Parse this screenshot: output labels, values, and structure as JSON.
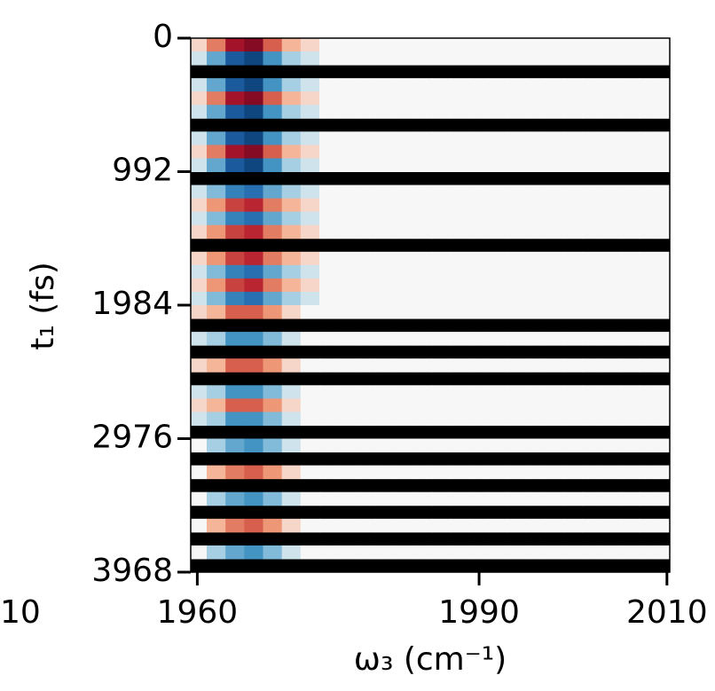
{
  "chart_data": {
    "type": "heatmap",
    "xlabel": "ω₃ (cm⁻¹)",
    "ylabel": "t₁ (fs)",
    "clipped_label": "10",
    "colormap": "RdBu_r",
    "clim": [
      -1,
      1
    ],
    "missing_color": "#000000",
    "xlim": [
      1959.3,
      2010.3
    ],
    "xticks": [
      1960,
      1990,
      2010
    ],
    "ylim": [
      0,
      3968
    ],
    "yticks": [
      0,
      992,
      1984,
      2976,
      3968
    ],
    "x": [
      1960,
      1962,
      1964,
      1966,
      1968,
      1970,
      1972,
      1974,
      1976,
      1978,
      1980,
      1982,
      1984,
      1986,
      1988,
      1990,
      1992,
      1994,
      1996,
      1998,
      2000,
      2002,
      2004,
      2006,
      2008,
      2010
    ],
    "y": [
      49.6,
      148.8,
      248,
      347.2,
      446.4,
      545.6,
      644.8,
      744,
      843.2,
      942.4,
      1041.6,
      1140.8,
      1240,
      1339.2,
      1438.4,
      1537.6,
      1636.8,
      1736,
      1835.2,
      1934.4,
      2033.6,
      2132.8,
      2232,
      2331.2,
      2430.4,
      2529.6,
      2628.8,
      2728,
      2827.2,
      2926.4,
      3025.6,
      3124.8,
      3224,
      3323.2,
      3422.4,
      3521.6,
      3620.8,
      3720,
      3819.2,
      3918.4
    ],
    "z": [
      [
        0.1,
        0.4,
        0.8,
        0.9,
        0.5,
        0.2,
        0.1,
        0,
        0,
        0,
        0,
        0,
        0,
        0,
        0,
        0,
        0,
        0,
        0,
        0,
        0,
        0,
        0,
        0,
        0,
        0
      ],
      [
        -0.1,
        -0.4,
        -0.8,
        -0.9,
        -0.5,
        -0.2,
        -0.1,
        0,
        0,
        0,
        0,
        0,
        0,
        0,
        0,
        0,
        0,
        0,
        0,
        0,
        0,
        0,
        0,
        0,
        0,
        0
      ],
      null,
      [
        -0.1,
        -0.4,
        -0.8,
        -0.9,
        -0.5,
        -0.2,
        -0.1,
        0,
        0,
        0,
        0,
        0,
        0,
        0,
        0,
        0,
        0,
        0,
        0,
        0,
        0,
        0,
        0,
        0,
        0,
        0
      ],
      [
        0.1,
        0.4,
        0.8,
        0.9,
        0.5,
        0.2,
        0.1,
        0,
        0,
        0,
        0,
        0,
        0,
        0,
        0,
        0,
        0,
        0,
        0,
        0,
        0,
        0,
        0,
        0,
        0,
        0
      ],
      [
        -0.1,
        -0.4,
        -0.8,
        -0.9,
        -0.5,
        -0.2,
        -0.1,
        0,
        0,
        0,
        0,
        0,
        0,
        0,
        0,
        0,
        0,
        0,
        0,
        0,
        0,
        0,
        0,
        0,
        0,
        0
      ],
      null,
      [
        -0.1,
        -0.4,
        -0.8,
        -0.9,
        -0.5,
        -0.2,
        -0.1,
        0,
        0,
        0,
        0,
        0,
        0,
        0,
        0,
        0,
        0,
        0,
        0,
        0,
        0,
        0,
        0,
        0,
        0,
        0
      ],
      [
        0.1,
        0.4,
        0.8,
        0.9,
        0.5,
        0.2,
        0.1,
        0,
        0,
        0,
        0,
        0,
        0,
        0,
        0,
        0,
        0,
        0,
        0,
        0,
        0,
        0,
        0,
        0,
        0,
        0
      ],
      [
        -0.1,
        -0.4,
        -0.8,
        -0.9,
        -0.5,
        -0.2,
        -0.1,
        0,
        0,
        0,
        0,
        0,
        0,
        0,
        0,
        0,
        0,
        0,
        0,
        0,
        0,
        0,
        0,
        0,
        0,
        0
      ],
      null,
      [
        -0.1,
        -0.3,
        -0.6,
        -0.7,
        -0.4,
        -0.2,
        -0.1,
        0,
        0,
        0,
        0,
        0,
        0,
        0,
        0,
        0,
        0,
        0,
        0,
        0,
        0,
        0,
        0,
        0,
        0,
        0
      ],
      [
        0.1,
        0.3,
        0.6,
        0.7,
        0.4,
        0.2,
        0.1,
        0,
        0,
        0,
        0,
        0,
        0,
        0,
        0,
        0,
        0,
        0,
        0,
        0,
        0,
        0,
        0,
        0,
        0,
        0
      ],
      [
        -0.1,
        -0.3,
        -0.6,
        -0.7,
        -0.4,
        -0.2,
        -0.1,
        0,
        0,
        0,
        0,
        0,
        0,
        0,
        0,
        0,
        0,
        0,
        0,
        0,
        0,
        0,
        0,
        0,
        0,
        0
      ],
      [
        0.1,
        0.3,
        0.6,
        0.7,
        0.4,
        0.2,
        0.1,
        0,
        0,
        0,
        0,
        0,
        0,
        0,
        0,
        0,
        0,
        0,
        0,
        0,
        0,
        0,
        0,
        0,
        0,
        0
      ],
      null,
      [
        0.1,
        0.3,
        0.6,
        0.7,
        0.4,
        0.2,
        0.1,
        0,
        0,
        0,
        0,
        0,
        0,
        0,
        0,
        0,
        0,
        0,
        0,
        0,
        0,
        0,
        0,
        0,
        0,
        0
      ],
      [
        -0.1,
        -0.3,
        -0.6,
        -0.7,
        -0.4,
        -0.2,
        -0.1,
        0,
        0,
        0,
        0,
        0,
        0,
        0,
        0,
        0,
        0,
        0,
        0,
        0,
        0,
        0,
        0,
        0,
        0,
        0
      ],
      [
        0.1,
        0.3,
        0.6,
        0.7,
        0.4,
        0.2,
        0.1,
        0,
        0,
        0,
        0,
        0,
        0,
        0,
        0,
        0,
        0,
        0,
        0,
        0,
        0,
        0,
        0,
        0,
        0,
        0
      ],
      [
        -0.1,
        -0.3,
        -0.6,
        -0.7,
        -0.4,
        -0.2,
        -0.1,
        0,
        0,
        0,
        0,
        0,
        0,
        0,
        0,
        0,
        0,
        0,
        0,
        0,
        0,
        0,
        0,
        0,
        0,
        0
      ],
      [
        0.1,
        0.2,
        0.5,
        0.5,
        0.3,
        0.1,
        0,
        0,
        0,
        0,
        0,
        0,
        0,
        0,
        0,
        0,
        0,
        0,
        0,
        0,
        0,
        0,
        0,
        0,
        0,
        0
      ],
      null,
      [
        -0.1,
        -0.2,
        -0.5,
        -0.5,
        -0.3,
        -0.1,
        0,
        0,
        0,
        0,
        0,
        0,
        0,
        0,
        0,
        0,
        0,
        0,
        0,
        0,
        0,
        0,
        0,
        0,
        0,
        0
      ],
      null,
      [
        0.1,
        0.2,
        0.5,
        0.5,
        0.3,
        0.1,
        0,
        0,
        0,
        0,
        0,
        0,
        0,
        0,
        0,
        0,
        0,
        0,
        0,
        0,
        0,
        0,
        0,
        0,
        0,
        0
      ],
      null,
      [
        -0.1,
        -0.2,
        -0.5,
        -0.5,
        -0.3,
        -0.1,
        0,
        0,
        0,
        0,
        0,
        0,
        0,
        0,
        0,
        0,
        0,
        0,
        0,
        0,
        0,
        0,
        0,
        0,
        0,
        0
      ],
      [
        0.1,
        0.2,
        0.5,
        0.5,
        0.3,
        0.1,
        0,
        0,
        0,
        0,
        0,
        0,
        0,
        0,
        0,
        0,
        0,
        0,
        0,
        0,
        0,
        0,
        0,
        0,
        0,
        0
      ],
      [
        -0.1,
        -0.2,
        -0.5,
        -0.5,
        -0.3,
        -0.1,
        0,
        0,
        0,
        0,
        0,
        0,
        0,
        0,
        0,
        0,
        0,
        0,
        0,
        0,
        0,
        0,
        0,
        0,
        0,
        0
      ],
      null,
      [
        0,
        -0.2,
        -0.4,
        -0.5,
        -0.3,
        -0.1,
        0,
        0,
        0,
        0,
        0,
        0,
        0,
        0,
        0,
        0,
        0,
        0,
        0,
        0,
        0,
        0,
        0,
        0,
        0,
        0
      ],
      null,
      [
        0,
        0.2,
        0.4,
        0.5,
        0.3,
        0.1,
        0,
        0,
        0,
        0,
        0,
        0,
        0,
        0,
        0,
        0,
        0,
        0,
        0,
        0,
        0,
        0,
        0,
        0,
        0,
        0
      ],
      null,
      [
        0,
        -0.2,
        -0.4,
        -0.5,
        -0.3,
        -0.1,
        0,
        0,
        0,
        0,
        0,
        0,
        0,
        0,
        0,
        0,
        0,
        0,
        0,
        0,
        0,
        0,
        0,
        0,
        0,
        0
      ],
      null,
      [
        0,
        0.2,
        0.4,
        0.5,
        0.3,
        0.1,
        0,
        0,
        0,
        0,
        0,
        0,
        0,
        0,
        0,
        0,
        0,
        0,
        0,
        0,
        0,
        0,
        0,
        0,
        0,
        0
      ],
      null,
      [
        0,
        -0.2,
        -0.4,
        -0.5,
        -0.3,
        -0.1,
        0,
        0,
        0,
        0,
        0,
        0,
        0,
        0,
        0,
        0,
        0,
        0,
        0,
        0,
        0,
        0,
        0,
        0,
        0,
        0
      ],
      null
    ]
  }
}
